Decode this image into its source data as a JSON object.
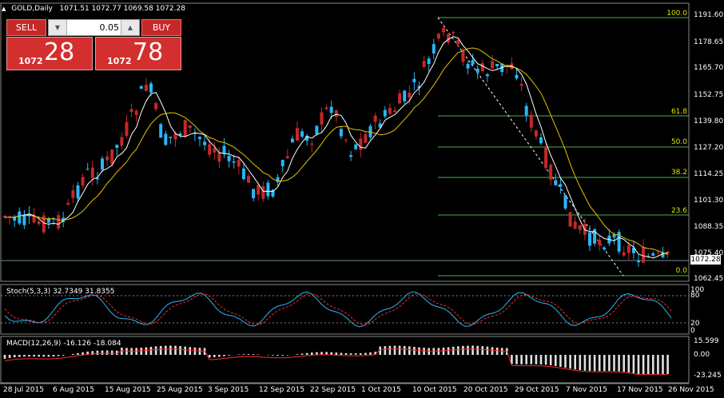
{
  "header": {
    "symbol_label": "GOLD,Daily",
    "ohlc": "1071.51 1072.77 1069.58 1072.28"
  },
  "trade_panel": {
    "sell_label": "SELL",
    "buy_label": "BUY",
    "lot_value": "0.05",
    "sell_small": "1072",
    "sell_big": "28",
    "buy_small": "1072",
    "buy_big": "78",
    "down_arrow": "▼",
    "up_arrow": "▲"
  },
  "price_axis": {
    "labels": [
      "1191.60",
      "1178.65",
      "1165.70",
      "1152.75",
      "1139.80",
      "1127.20",
      "1114.25",
      "1101.30",
      "1088.35",
      "1075.40",
      "1062.45"
    ],
    "current_price": "1072.28"
  },
  "fibonacci": {
    "levels": [
      "100.0",
      "61.8",
      "50.0",
      "38.2",
      "23.6",
      "0.0"
    ],
    "color": "#4caf50",
    "label_color": "#d8e600"
  },
  "time_axis": {
    "labels": [
      "28 Jul 2015",
      "6 Aug 2015",
      "15 Aug 2015",
      "25 Aug 2015",
      "3 Sep 2015",
      "12 Sep 2015",
      "22 Sep 2015",
      "1 Oct 2015",
      "10 Oct 2015",
      "20 Oct 2015",
      "29 Oct 2015",
      "7 Nov 2015",
      "17 Nov 2015",
      "26 Nov 2015"
    ]
  },
  "stochastic": {
    "label": "Stoch(5,3,3) 32.7349 31.8355",
    "levels": [
      "100",
      "80",
      "20",
      "0"
    ]
  },
  "macd": {
    "label": "MACD(12,26,9) -16.126 -18.084",
    "levels": [
      "15.599",
      "0.00",
      "-23.245"
    ]
  },
  "colors": {
    "bull": "#29b6f6",
    "bear": "#c62828",
    "ma_fast": "#ffffff",
    "ma_slow": "#e6c200",
    "signal": "#ff2a2a",
    "hist": "#e0e0e0"
  }
}
